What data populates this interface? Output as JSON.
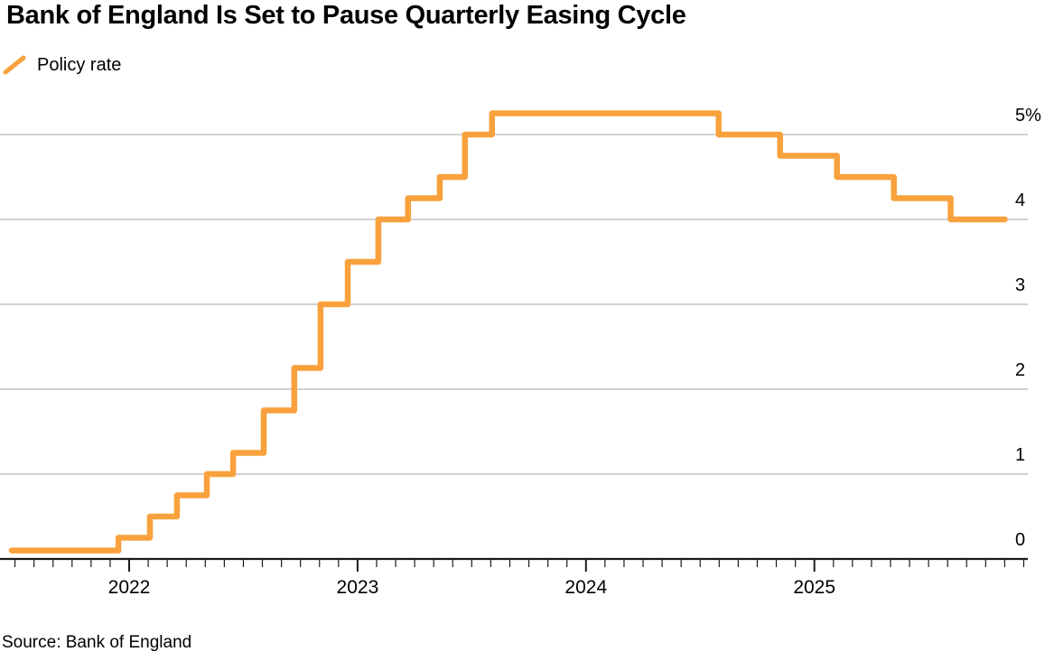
{
  "header": {
    "title": "Bank of England Is Set to Pause Quarterly Easing Cycle"
  },
  "legend": {
    "items": [
      {
        "label": "Policy rate",
        "marker": "diagonal-line-icon",
        "color": "#F9A13C"
      }
    ]
  },
  "footer": {
    "source": "Source: Bank of England"
  },
  "colors": {
    "accent": "#F9A13C",
    "grid": "#CCCCCC",
    "axis": "#1A1A1A",
    "text": "#000000"
  },
  "chart_data": {
    "type": "line",
    "subtype": "step-after",
    "title": "Bank of England Is Set to Pause Quarterly Easing Cycle",
    "xlabel": "",
    "ylabel": "",
    "x_domain": [
      2021.4345,
      2025.9345
    ],
    "y_domain": [
      0,
      5.9
    ],
    "x_ticks_major": [
      2022,
      2023,
      2024,
      2025
    ],
    "x_tick_labels": [
      "2022",
      "2023",
      "2024",
      "2025"
    ],
    "x_minor_ticks": "monthly",
    "y_ticks": [
      0,
      1,
      2,
      3,
      4,
      5
    ],
    "y_tick_labels": [
      "0",
      "1",
      "2",
      "3",
      "4",
      "5%"
    ],
    "grid": "horizontal",
    "legend_position": "top-left",
    "series": [
      {
        "name": "Policy rate",
        "color": "#F9A13C",
        "unit": "%",
        "step_points": [
          [
            2021.486,
            0.1
          ],
          [
            2021.953,
            0.25
          ],
          [
            2022.091,
            0.5
          ],
          [
            2022.209,
            0.75
          ],
          [
            2022.34,
            1.0
          ],
          [
            2022.455,
            1.25
          ],
          [
            2022.589,
            1.75
          ],
          [
            2022.723,
            2.25
          ],
          [
            2022.838,
            3.0
          ],
          [
            2022.957,
            3.5
          ],
          [
            2023.091,
            4.0
          ],
          [
            2023.221,
            4.25
          ],
          [
            2023.36,
            4.5
          ],
          [
            2023.47,
            5.0
          ],
          [
            2023.589,
            5.25
          ],
          [
            2024.581,
            5.0
          ],
          [
            2024.85,
            4.75
          ],
          [
            2025.099,
            4.5
          ],
          [
            2025.348,
            4.25
          ],
          [
            2025.597,
            4.0
          ]
        ],
        "end_x": 2025.834,
        "last_value": 4.0
      }
    ]
  }
}
